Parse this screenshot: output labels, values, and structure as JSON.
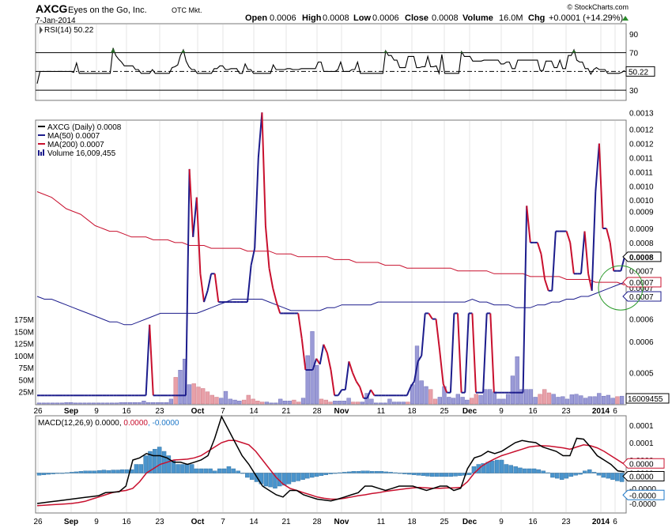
{
  "header": {
    "symbol": "AXCG",
    "company": "Eyes on the Go, Inc.",
    "exchange": "OTC Mkt.",
    "date": "7-Jan-2014",
    "open_label": "Open",
    "open": "0.0006",
    "high_label": "High",
    "high": "0.0008",
    "low_label": "Low",
    "low": "0.0006",
    "close_label": "Close",
    "close": "0.0008",
    "volume_label": "Volume",
    "volume": "16.0M",
    "chg_label": "Chg",
    "chg": "+0.0001 (+14.29%)",
    "watermark": "© StockCharts.com",
    "up_color": "#2a8a2a"
  },
  "chart_data": [
    {
      "type": "line",
      "panel": "rsi",
      "label": "RSI(14) 50.22",
      "current_value_label": "50.22",
      "ylim": [
        20,
        100
      ],
      "yticks": [
        30,
        50,
        70,
        90
      ],
      "reference_lines": [
        30,
        50,
        70
      ],
      "color": "#000000",
      "overbought_fill": "#2a6a2a",
      "values": [
        37,
        50,
        50,
        50,
        50,
        50,
        50,
        50,
        50,
        50,
        50,
        50,
        50,
        49,
        59,
        48,
        48,
        48,
        48,
        48,
        48,
        48,
        48,
        48,
        48,
        48,
        48,
        75,
        67,
        63,
        60,
        56,
        56,
        56,
        56,
        52,
        52,
        48,
        48,
        48,
        48,
        52,
        48,
        48,
        48,
        48,
        48,
        48,
        54,
        55,
        57,
        67,
        73,
        61,
        55,
        52,
        52,
        48,
        48,
        48,
        48,
        48,
        48,
        53,
        53,
        56,
        56,
        52,
        52,
        53,
        53,
        53,
        48,
        48,
        58,
        52,
        52,
        48,
        48,
        48,
        48,
        48,
        48,
        48,
        57,
        52,
        52,
        52,
        52,
        53,
        53,
        52,
        52,
        52,
        53,
        53,
        53,
        53,
        53,
        53,
        60,
        60,
        50,
        50,
        50,
        50,
        50,
        52,
        60,
        50,
        50,
        50,
        52,
        52,
        60,
        48,
        48,
        48,
        48,
        48,
        48,
        48,
        48,
        48,
        72,
        67,
        67,
        62,
        62,
        54,
        54,
        54,
        66,
        66,
        66,
        54,
        54,
        55,
        55,
        66,
        55,
        55,
        56,
        48,
        68,
        48,
        48,
        48,
        48,
        48,
        48,
        71,
        66,
        66,
        66,
        61,
        61,
        61,
        61,
        62,
        62,
        62,
        62,
        62,
        62,
        58,
        58,
        60,
        60,
        53,
        53,
        62,
        62,
        62,
        62,
        62,
        62,
        62,
        62,
        51,
        51,
        61,
        61,
        61,
        54,
        54,
        62,
        53,
        53,
        67,
        67,
        73,
        62,
        60,
        60,
        53,
        53,
        47,
        52,
        54,
        52,
        52,
        52,
        48,
        48,
        48,
        48,
        48,
        49,
        51
      ]
    },
    {
      "type": "line",
      "panel": "price",
      "legend": [
        {
          "name": "AXCG (Daily) 0.0008",
          "color": "#000000"
        },
        {
          "name": "MA(50) 0.0007",
          "color": "#1c1c8c"
        },
        {
          "name": "MA(200) 0.0007",
          "color": "#c8102e"
        },
        {
          "name": "Volume 16,009,455",
          "color": "#1c1c8c"
        }
      ],
      "ylim": [
        0.0003,
        0.0013
      ],
      "yticks_display": [
        "0.0013",
        "0.0012",
        "0.0012",
        "0.0011",
        "0.0011",
        "0.0010",
        "0.0010",
        "0.0009",
        "0.0009",
        "0.0008",
        "0.0008",
        "0.0007",
        "0.0007",
        "0.0006",
        "0.0006",
        "0.0005"
      ],
      "ytick_values": [
        0.00133,
        0.00127,
        0.00122,
        0.00117,
        0.00112,
        0.00107,
        0.00102,
        0.00098,
        0.00092,
        0.00087,
        0.00082,
        0.00077,
        0.00071,
        0.0006,
        0.00052,
        0.00041
      ],
      "price_up_color": "#1c1c8c",
      "price_down_color": "#c8102e",
      "close": [
        0.00033,
        0.00033,
        0.00033,
        0.00033,
        0.00033,
        0.00033,
        0.00033,
        0.00033,
        0.00033,
        0.00033,
        0.00033,
        0.00033,
        0.00033,
        0.00033,
        0.00033,
        0.00033,
        0.00033,
        0.00033,
        0.00033,
        0.00033,
        0.00033,
        0.00033,
        0.00033,
        0.00033,
        0.00033,
        0.00033,
        0.00033,
        0.00033,
        0.00033,
        0.00033,
        0.00033,
        0.00058,
        0.00033,
        0.00033,
        0.00033,
        0.00033,
        0.00033,
        0.00033,
        0.00033,
        0.00033,
        0.00033,
        0.00033,
        0.00113,
        0.00089,
        0.00103,
        0.00076,
        0.00066,
        0.0007,
        0.00076,
        0.00076,
        0.00066,
        0.00066,
        0.00066,
        0.00066,
        0.00066,
        0.00066,
        0.00066,
        0.00066,
        0.00066,
        0.00079,
        0.00085,
        0.00117,
        0.00133,
        0.00093,
        0.00078,
        0.00071,
        0.00066,
        0.00062,
        0.00062,
        0.00062,
        0.00062,
        0.00062,
        0.00062,
        0.00053,
        0.00042,
        0.00042,
        0.00042,
        0.00046,
        0.00044,
        0.00051,
        0.00048,
        0.00042,
        0.00033,
        0.00033,
        0.00035,
        0.00035,
        0.00045,
        0.00041,
        0.00038,
        0.00036,
        0.00032,
        0.00032,
        0.00035,
        0.00033,
        0.00033,
        0.00033,
        0.00033,
        0.00033,
        0.00033,
        0.00033,
        0.00033,
        0.00033,
        0.00033,
        0.00036,
        0.00038,
        0.00045,
        0.00047,
        0.00062,
        0.00062,
        0.0006,
        0.0006,
        0.00049,
        0.00037,
        0.00034,
        0.00034,
        0.00062,
        0.00062,
        0.00034,
        0.00034,
        0.00062,
        0.00062,
        0.00034,
        0.00034,
        0.00034,
        0.00062,
        0.00062,
        0.00034,
        0.00034,
        0.00034,
        0.00034,
        0.00034,
        0.00034,
        0.00034,
        0.00034,
        0.00034,
        0.001,
        0.00087,
        0.00087,
        0.00087,
        0.00083,
        0.00074,
        0.0007,
        0.0007,
        0.00091,
        0.00091,
        0.00091,
        0.00091,
        0.00087,
        0.00076,
        0.00076,
        0.00076,
        0.00091,
        0.00076,
        0.0007,
        0.00105,
        0.00122,
        0.00092,
        0.00092,
        0.00087,
        0.00077,
        0.00077,
        0.00077,
        0.00082
      ],
      "ma50": [
        0.00068,
        0.00067,
        0.00067,
        0.00066,
        0.00065,
        0.00064,
        0.00063,
        0.00062,
        0.00061,
        0.0006,
        0.00059,
        0.00059,
        0.00058,
        0.00058,
        0.00059,
        0.0006,
        0.00061,
        0.00062,
        0.00062,
        0.00062,
        0.00062,
        0.00062,
        0.00062,
        0.00063,
        0.00064,
        0.00065,
        0.00066,
        0.00067,
        0.00067,
        0.00067,
        0.00067,
        0.00067,
        0.00066,
        0.00065,
        0.00064,
        0.00063,
        0.00063,
        0.00063,
        0.00063,
        0.00063,
        0.00064,
        0.00064,
        0.00065,
        0.00065,
        0.00065,
        0.00065,
        0.00065,
        0.00066,
        0.00066,
        0.00066,
        0.00066,
        0.00066,
        0.00066,
        0.00066,
        0.00066,
        0.00066,
        0.00066,
        0.00066,
        0.00066,
        0.00066,
        0.00067,
        0.00066,
        0.00066,
        0.00065,
        0.00065,
        0.00065,
        0.00064,
        0.00064,
        0.00064,
        0.00065,
        0.00065,
        0.00066,
        0.00066,
        0.00067,
        0.00067,
        0.00068,
        0.00068,
        0.00069,
        0.0007,
        0.00071,
        0.00072,
        0.00073
      ],
      "ma200": [
        0.00105,
        0.00104,
        0.00103,
        0.00101,
        0.00099,
        0.00098,
        0.00097,
        0.00095,
        0.00093,
        0.00092,
        0.00091,
        0.00091,
        0.0009,
        0.00089,
        0.00089,
        0.00089,
        0.00088,
        0.00088,
        0.00088,
        0.00087,
        0.00087,
        0.00086,
        0.00086,
        0.00086,
        0.00085,
        0.00085,
        0.00085,
        0.00085,
        0.00085,
        0.00084,
        0.00084,
        0.00084,
        0.00084,
        0.00083,
        0.00083,
        0.00083,
        0.00082,
        0.00082,
        0.00082,
        0.00082,
        0.00082,
        0.00081,
        0.00081,
        0.00081,
        0.0008,
        0.0008,
        0.0008,
        0.0008,
        0.00079,
        0.00079,
        0.00079,
        0.00078,
        0.00078,
        0.00078,
        0.00078,
        0.00078,
        0.00078,
        0.00078,
        0.00077,
        0.00077,
        0.00077,
        0.00077,
        0.00077,
        0.00076,
        0.00076,
        0.00076,
        0.00076,
        0.00076,
        0.00075,
        0.00075,
        0.00075,
        0.00075,
        0.00075,
        0.00074,
        0.00074,
        0.00074,
        0.00074,
        0.00073,
        0.00073,
        0.00073,
        0.00073,
        0.00072
      ],
      "badges": [
        {
          "text": "0.0008",
          "value": 0.00082,
          "bg": "#ffffff",
          "fg": "#000000",
          "border": "#000000",
          "bold": true
        },
        {
          "text": "0.0007",
          "value": 0.00073,
          "bg": "#ffffff",
          "fg": "#c8102e",
          "border": "#c8102e",
          "bold": false
        },
        {
          "text": "0.0007",
          "value": 0.00068,
          "bg": "#ffffff",
          "fg": "#1c1c8c",
          "border": "#1c1c8c",
          "bold": false
        }
      ],
      "circle_color": "#2a9a2a"
    },
    {
      "type": "bar",
      "panel": "volume",
      "ylim": [
        0,
        190
      ],
      "yticks": [
        25,
        50,
        75,
        100,
        125,
        150,
        175
      ],
      "yticks_display": [
        "25M",
        "50M",
        "75M",
        "100M",
        "125M",
        "150M",
        "175M"
      ],
      "current_value_label": "16009455",
      "unit": "M",
      "up_color": "#9a9ad6",
      "down_color": "#e8a0a8",
      "values": [
        2,
        2,
        2,
        2,
        2,
        2,
        3,
        3,
        2,
        2,
        2,
        2,
        2,
        2,
        2,
        2,
        2,
        2,
        3,
        3,
        3,
        3,
        3,
        6,
        3,
        3,
        3,
        3,
        3,
        10,
        55,
        70,
        93,
        40,
        42,
        35,
        32,
        25,
        18,
        14,
        12,
        26,
        10,
        8,
        6,
        8,
        18,
        10,
        6,
        4,
        4,
        2,
        2,
        10,
        6,
        6,
        8,
        4,
        12,
        100,
        150,
        80,
        10,
        8,
        4,
        6,
        6,
        6,
        12,
        4,
        4,
        4,
        22,
        10,
        2,
        2,
        2,
        10,
        4,
        4,
        4,
        4,
        40,
        120,
        48,
        36,
        30,
        10,
        14,
        36,
        14,
        12,
        20,
        14,
        8,
        12,
        20,
        18,
        30,
        30,
        25,
        10,
        10,
        20,
        58,
        98,
        30,
        30,
        30,
        14,
        20,
        30,
        23,
        20,
        14,
        15,
        10,
        19,
        20,
        17,
        12,
        15,
        15,
        22,
        16,
        18,
        12,
        15,
        16
      ],
      "directions": "uuuuuuuuuuuuuuuuuuuuuuuuuuuuuuduuudddddduuuuuddddduuuuuudduuuuddduuuudduuuuuuuuuuduuuudduuuuuuudduuuuuuuuuuuuuddduuuuuuuuuuuuuuduuuuuuuuu"
    },
    {
      "type": "bar",
      "panel": "macd",
      "label": "MACD(12,26,9) 0.0000, 0.0000, -0.0000",
      "label_parts": [
        "MACD(12,26,9) 0.0000, ",
        "0.0000",
        ", -0.0000"
      ],
      "ylim": [
        -9e-05,
        0.00013
      ],
      "yticks": [
        0.0001,
        5e-05,
        0.0,
        -5e-05
      ],
      "yticks_display": [
        "0.0001",
        "0.0001",
        "0.0000",
        "0.0000",
        "-0.0000",
        "-0.0000"
      ],
      "ytick_values": [
        0.00011,
        7e-05,
        3e-05,
        0.0,
        -3.5e-05,
        -7e-05
      ],
      "badges": [
        {
          "text": "0.0000",
          "value": 1.5e-05,
          "fg": "#c8102e",
          "border": "#c8102e"
        },
        {
          "text": "0.0000",
          "value": 0.0,
          "fg": "#000000",
          "border": "#000000"
        },
        {
          "text": "-0.0000",
          "value": -2.5e-05,
          "fg": "#000000",
          "border": "#1f78c8"
        }
      ],
      "histogram_color": "#4a94cc",
      "macd_color": "#000000",
      "signal_color": "#c8102e",
      "histogram": [
        -5e-06,
        -4e-06,
        -3e-06,
        -2e-06,
        -1e-06,
        0,
        1e-06,
        2e-06,
        3e-06,
        4e-06,
        5e-06,
        5e-06,
        5e-06,
        6e-06,
        7e-06,
        6e-06,
        7e-06,
        7e-06,
        8e-06,
        8e-06,
        8e-06,
        2e-05,
        2e-05,
        4e-05,
        5e-05,
        5.5e-05,
        6e-05,
        5e-05,
        4e-05,
        3e-05,
        2e-05,
        2e-05,
        2e-05,
        2e-05,
        1e-05,
        1e-05,
        1e-05,
        1e-05,
        5e-06,
        1e-05,
        1e-05,
        1.5e-05,
        1e-05,
        5e-06,
        0,
        -1e-05,
        -1.5e-05,
        -2e-05,
        -2.5e-05,
        -3e-05,
        -3.2e-05,
        -3.5e-05,
        -3e-05,
        -2.8e-05,
        -2.5e-05,
        -2e-05,
        -1.8e-05,
        -1.5e-05,
        -1.2e-05,
        -1e-05,
        -8e-06,
        -6e-06,
        -4e-06,
        -2e-06,
        0,
        1e-06,
        2e-06,
        3e-06,
        4e-06,
        4e-06,
        5e-06,
        5e-06,
        4e-06,
        4e-06,
        4e-06,
        3e-06,
        2e-06,
        1e-06,
        0,
        -2e-06,
        -3e-06,
        -4e-06,
        -5e-06,
        -6e-06,
        -7e-06,
        -8e-06,
        -8e-06,
        -8e-06,
        -8e-06,
        -8e-06,
        -7e-06,
        -6e-06,
        -5e-06,
        -4e-06,
        1.5e-05,
        2e-05,
        2.2e-05,
        2.5e-05,
        2.8e-05,
        3e-05,
        3e-05,
        2e-05,
        1.8e-05,
        1.5e-05,
        1.2e-05,
        1e-05,
        1e-05,
        1e-05,
        8e-06,
        5e-06,
        1e-06,
        -1e-05,
        -1.2e-05,
        -1.5e-05,
        -1.2e-05,
        -8e-06,
        -5e-06,
        -3e-06,
        5e-06,
        8e-06,
        2e-06,
        -5e-06,
        -1e-05,
        -1.2e-05,
        -1.5e-05,
        -1.8e-05,
        -2e-05
      ],
      "macd": [
        -7e-05,
        -6.8e-05,
        -6.6e-05,
        -6.4e-05,
        -6.2e-05,
        -6e-05,
        -5.8e-05,
        -5.6e-05,
        -5.4e-05,
        -5.2e-05,
        -4.5e-05,
        -4.4e-05,
        -4.3e-05,
        -3e-05,
        3e-05,
        3.5e-05,
        4.5e-05,
        4e-05,
        4e-05,
        3.5e-05,
        2.5e-05,
        2.5e-05,
        2e-05,
        2.5e-05,
        3e-05,
        4e-05,
        8e-05,
        0.00013,
        0.0001,
        7e-05,
        4e-05,
        2e-05,
        -5e-06,
        -3e-05,
        -4e-05,
        -5e-05,
        -5.5e-05,
        -4e-05,
        -4e-05,
        -5e-05,
        -5.5e-05,
        -6e-05,
        -6.2e-05,
        -6.4e-05,
        -6e-05,
        -5.5e-05,
        -5e-05,
        -4.5e-05,
        -3e-05,
        -3e-05,
        -3.5e-05,
        -4e-05,
        -3.5e-05,
        -3e-05,
        -3e-05,
        -3e-05,
        -3.5e-05,
        -4e-05,
        -3.5e-05,
        -3e-05,
        -3e-05,
        -4e-05,
        -3.5e-05,
        1e-05,
        3.5e-05,
        4e-05,
        5e-05,
        4.5e-05,
        5e-05,
        6e-05,
        7e-05,
        7.5e-05,
        7.2e-05,
        7e-05,
        6e-05,
        5.5e-05,
        5e-05,
        4e-05,
        4e-05,
        8e-05,
        7.8e-05,
        6e-05,
        4e-05,
        3e-05,
        2e-05,
        5e-06,
        3e-06
      ],
      "signal": [
        -7.5e-05,
        -7.4e-05,
        -7.3e-05,
        -7.2e-05,
        -7.1e-05,
        -7e-05,
        -6.8e-05,
        -6.5e-05,
        -6e-05,
        -5.5e-05,
        -5e-05,
        -4.5e-05,
        -4.2e-05,
        -4e-05,
        -3.5e-05,
        -2e-05,
        0.0,
        1e-05,
        2e-05,
        2.5e-05,
        3e-05,
        3.1e-05,
        3.2e-05,
        3.5e-05,
        4e-05,
        5e-05,
        6e-05,
        7e-05,
        7.5e-05,
        7.5e-05,
        7e-05,
        6.5e-05,
        5e-05,
        3e-05,
        1e-05,
        -1e-05,
        -2.5e-05,
        -3.5e-05,
        -4e-05,
        -4.5e-05,
        -5e-05,
        -5.5e-05,
        -5.8e-05,
        -6e-05,
        -6e-05,
        -5.8e-05,
        -5.5e-05,
        -5.2e-05,
        -5e-05,
        -4.7e-05,
        -4.5e-05,
        -4.2e-05,
        -4e-05,
        -3.8e-05,
        -3.6e-05,
        -3.4e-05,
        -3.3e-05,
        -3.4e-05,
        -3.5e-05,
        -3.5e-05,
        -3.4e-05,
        -3.4e-05,
        -3.3e-05,
        -2e-05,
        0.0,
        1.5e-05,
        2.5e-05,
        3.3e-05,
        4e-05,
        4.5e-05,
        5e-05,
        5.5e-05,
        6e-05,
        6.2e-05,
        6.3e-05,
        6.2e-05,
        6e-05,
        5.8e-05,
        5.5e-05,
        6e-05,
        6.5e-05,
        6.3e-05,
        5.8e-05,
        5e-05,
        4e-05,
        3e-05,
        2e-05
      ]
    }
  ],
  "x_axis": {
    "top_labels": [
      "26",
      "Sep",
      "9",
      "16",
      "23",
      "Oct",
      "7",
      "14",
      "21",
      "28",
      "Nov",
      "11",
      "18",
      "25",
      "Dec",
      "9",
      "16",
      "23",
      "2014",
      "6"
    ],
    "bottom_labels": [
      "26",
      "Sep",
      "9",
      "16",
      "23",
      "Oct",
      "7",
      "14",
      "21",
      "28",
      "Nov",
      "11",
      "18",
      "25",
      "Dec",
      "9",
      "16",
      "23",
      "2014",
      "6"
    ],
    "bold_labels": [
      "Sep",
      "Oct",
      "Nov",
      "Dec",
      "2014"
    ]
  }
}
